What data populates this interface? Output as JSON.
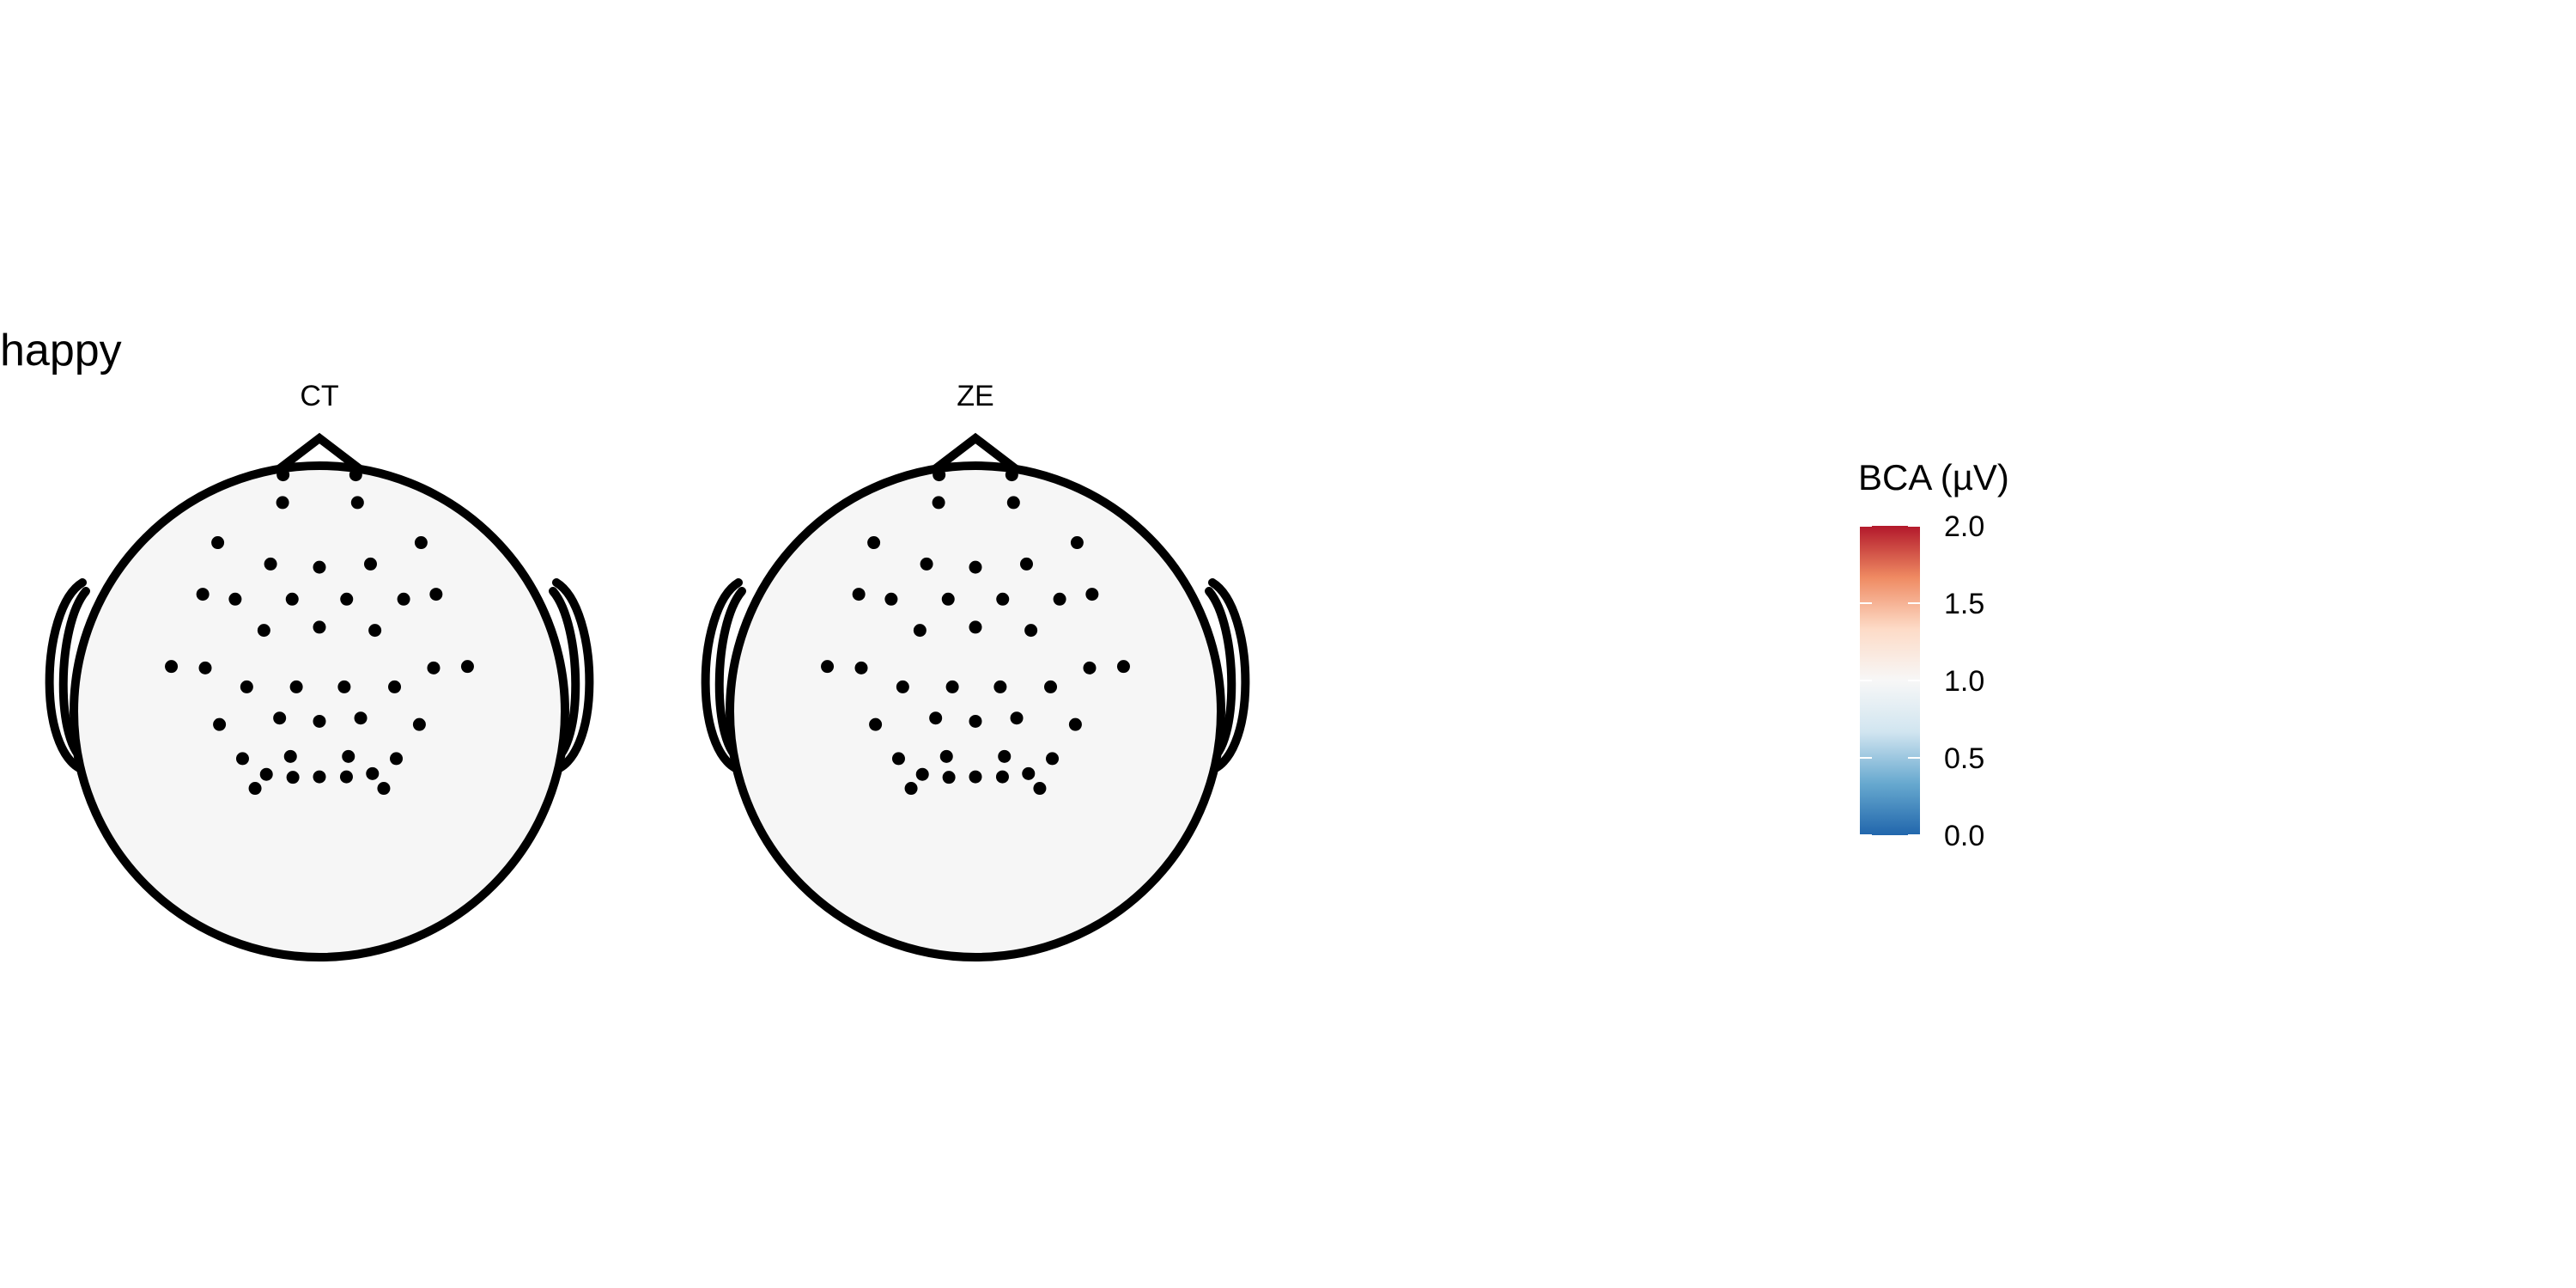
{
  "chart_data": {
    "type": "heatmap",
    "title": "happy",
    "panels": [
      {
        "label": "CT"
      },
      {
        "label": "ZE"
      }
    ],
    "legend": {
      "title": "BCA (µV)",
      "ticks": [
        "2.0",
        "1.5",
        "1.0",
        "0.5",
        "0.0"
      ],
      "range": [
        0,
        2
      ],
      "colors": [
        "#2166ac",
        "#67a9cf",
        "#d1e5f0",
        "#f7f7f7",
        "#fddbc7",
        "#ef8a62",
        "#b2182b"
      ],
      "placement": "right"
    },
    "scalp_fill": "#f6f6f6"
  }
}
